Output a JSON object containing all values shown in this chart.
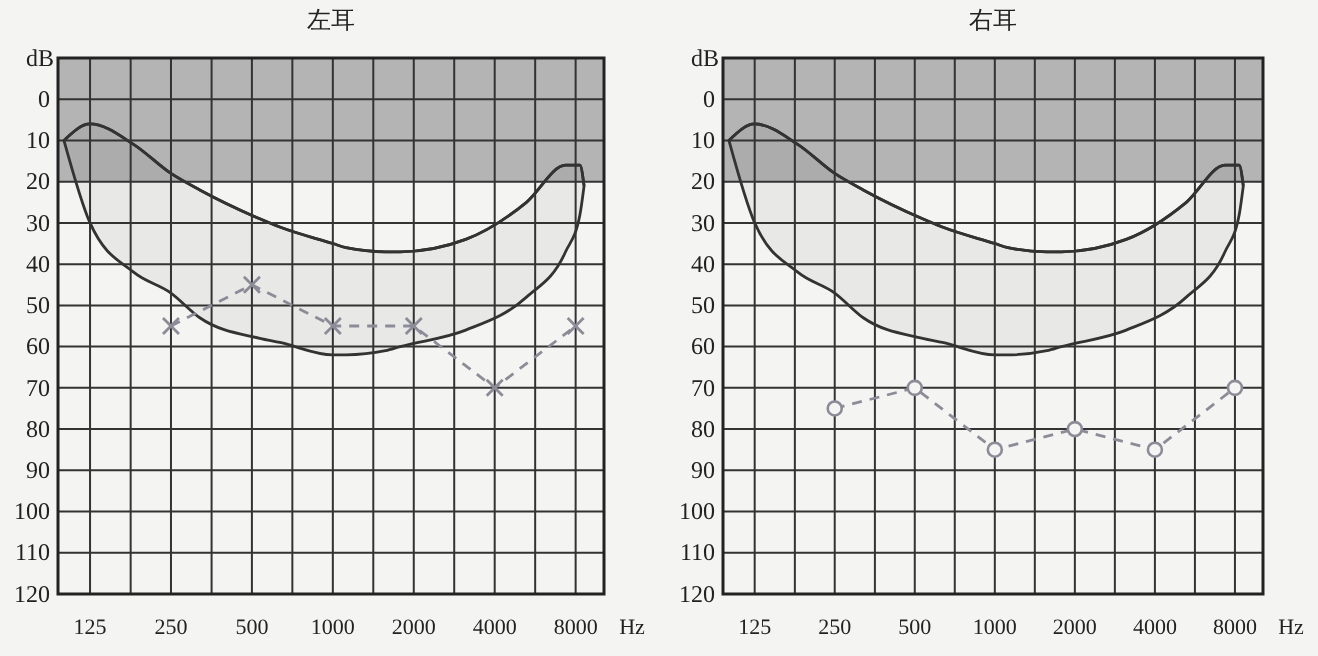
{
  "chart_data": [
    {
      "type": "line",
      "title": "左耳",
      "xlabel": "Hz",
      "ylabel": "dB",
      "log": "x",
      "grid": true,
      "xlim": [
        95,
        10200
      ],
      "ylim": [
        120,
        -10
      ],
      "xticks": [
        125,
        {
          "value": 177,
          "label": null
        },
        250,
        {
          "value": 354,
          "label": null
        },
        500,
        {
          "value": 707,
          "label": null
        },
        1000,
        {
          "value": 1414,
          "label": null
        },
        2000,
        {
          "value": 2828,
          "label": null
        },
        4000,
        {
          "value": 5657,
          "label": null
        },
        8000
      ],
      "yticks": [
        {
          "value": -10,
          "label": null
        },
        0,
        10,
        20,
        30,
        40,
        50,
        60,
        70,
        80,
        90,
        100,
        110,
        120
      ],
      "bands": [
        {
          "axis": "y",
          "from": -10,
          "to": 20,
          "color": "#b4b4b4"
        }
      ],
      "series": [
        {
          "type": "line",
          "color": "#333333",
          "x": [
            100,
            125,
            182,
            250,
            320,
            535,
            635,
            1000,
            1120,
            1570,
            1780,
            3120,
            5250,
            7340,
            8300,
            8600
          ],
          "values": [
            10,
            6,
            11,
            18,
            22,
            29,
            31,
            35,
            36,
            37,
            37,
            34,
            25,
            16,
            16,
            21
          ],
          "lower": [
            10,
            6,
            11,
            18,
            22,
            29,
            31,
            35,
            36,
            37,
            37,
            34,
            25,
            16,
            16,
            21
          ],
          "upper": [
            10,
            30,
            42,
            47,
            53,
            58,
            59,
            62,
            62,
            61,
            60,
            56,
            48,
            37,
            28,
            21
          ]
        },
        {
          "color": "#8c8c98",
          "line_style": "dashed",
          "marker": "cross",
          "x": [
            250,
            500,
            1000,
            2000,
            4000,
            8000
          ],
          "values": [
            55,
            45,
            55,
            55,
            70,
            55
          ]
        }
      ]
    },
    {
      "type": "line",
      "title": "右耳",
      "xlabel": "Hz",
      "ylabel": "dB",
      "log": "x",
      "grid": true,
      "xlim": [
        95,
        10200
      ],
      "ylim": [
        120,
        -10
      ],
      "xticks": [
        125,
        {
          "value": 177,
          "label": null
        },
        250,
        {
          "value": 354,
          "label": null
        },
        500,
        {
          "value": 707,
          "label": null
        },
        1000,
        {
          "value": 1414,
          "label": null
        },
        2000,
        {
          "value": 2828,
          "label": null
        },
        4000,
        {
          "value": 5657,
          "label": null
        },
        8000
      ],
      "yticks": [
        {
          "value": -10,
          "label": null
        },
        0,
        10,
        20,
        30,
        40,
        50,
        60,
        70,
        80,
        90,
        100,
        110,
        120
      ],
      "bands": [
        {
          "axis": "y",
          "from": -10,
          "to": 20,
          "color": "#b4b4b4"
        }
      ],
      "series": [
        {
          "type": "line",
          "color": "#333333",
          "x": [
            100,
            125,
            182,
            250,
            320,
            535,
            635,
            1000,
            1120,
            1570,
            1780,
            3120,
            5250,
            7340,
            8300,
            8600
          ],
          "values": [
            10,
            6,
            11,
            18,
            22,
            29,
            31,
            35,
            36,
            37,
            37,
            34,
            25,
            16,
            16,
            21
          ],
          "lower": [
            10,
            6,
            11,
            18,
            22,
            29,
            31,
            35,
            36,
            37,
            37,
            34,
            25,
            16,
            16,
            21
          ],
          "upper": [
            10,
            30,
            42,
            47,
            53,
            58,
            59,
            62,
            62,
            61,
            60,
            56,
            48,
            37,
            28,
            21
          ]
        },
        {
          "color": "#8c8c98",
          "line_style": "dashed",
          "marker": "circle",
          "x": [
            250,
            500,
            1000,
            2000,
            4000,
            8000
          ],
          "values": [
            75,
            70,
            85,
            80,
            85,
            70
          ]
        }
      ]
    }
  ]
}
